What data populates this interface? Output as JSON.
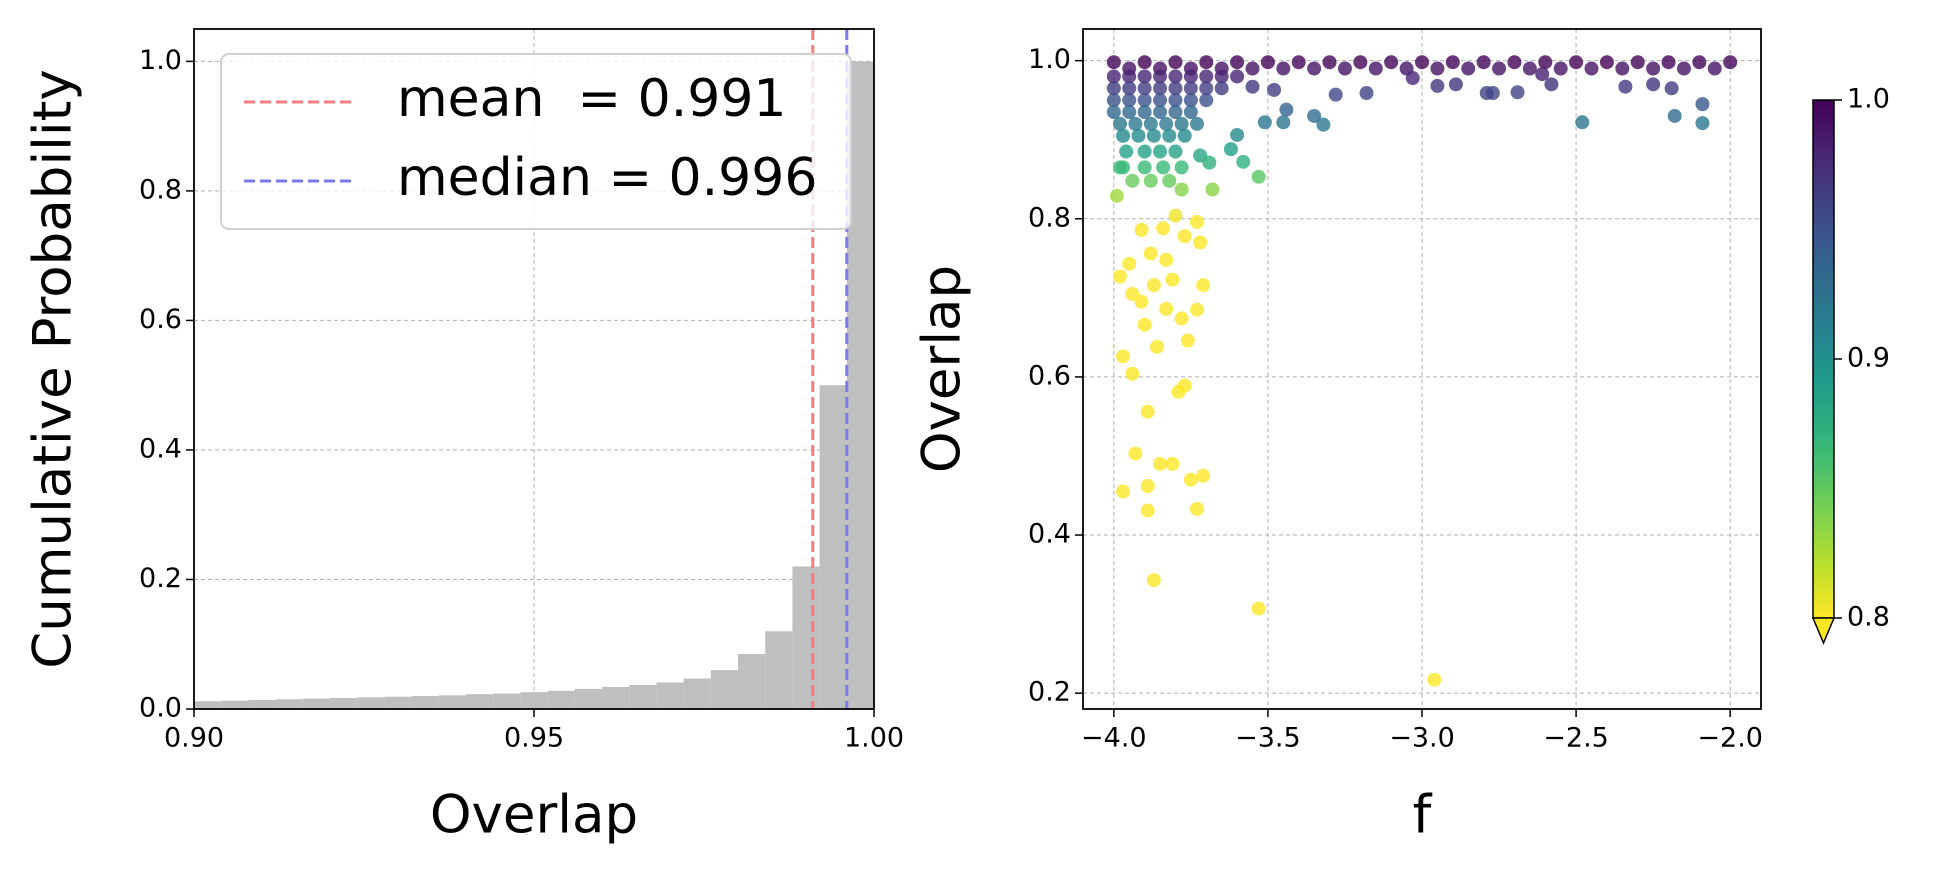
{
  "chart_data": [
    {
      "type": "histogram",
      "xlabel": "Overlap",
      "ylabel": "Cumulative Probability",
      "color": "#bfbfbf",
      "bins": [
        0.9,
        0.904,
        0.908,
        0.912,
        0.916,
        0.92,
        0.924,
        0.928,
        0.932,
        0.936,
        0.94,
        0.944,
        0.948,
        0.952,
        0.956,
        0.96,
        0.964,
        0.968,
        0.972,
        0.976,
        0.98,
        0.984,
        0.988,
        0.992,
        0.996,
        1.0
      ],
      "values": [
        0.012,
        0.013,
        0.014,
        0.015,
        0.016,
        0.017,
        0.018,
        0.019,
        0.02,
        0.021,
        0.023,
        0.024,
        0.026,
        0.028,
        0.031,
        0.034,
        0.037,
        0.041,
        0.047,
        0.06,
        0.085,
        0.12,
        0.22,
        0.5,
        1.0
      ],
      "vlines": [
        {
          "name": "mean  = 0.991",
          "value": 0.991,
          "color": "#f47c7c"
        },
        {
          "name": "median = 0.996",
          "value": 0.996,
          "color": "#7b7bee"
        }
      ],
      "legend": "upper left",
      "grid": true,
      "xlim": [
        0.9,
        1.0
      ],
      "xticks": [
        {
          "value": 0.9,
          "label": "0.90"
        },
        0.95,
        {
          "value": 1.0,
          "label": "1.00"
        }
      ],
      "ylim": [
        0,
        1.05
      ],
      "yticks": [
        {
          "value": 0,
          "label": "0.0"
        },
        0.2,
        0.4,
        0.6,
        0.8,
        {
          "value": 1.0,
          "label": "1.0"
        }
      ]
    },
    {
      "type": "scatter",
      "xlabel": "f",
      "ylabel": "Overlap",
      "grid": true,
      "colormap": "viridis_r",
      "clim": [
        0.8,
        1.0
      ],
      "extend": "min",
      "cticks": [
        0.8,
        0.9,
        {
          "value": 1.0,
          "label": "1.0"
        }
      ],
      "xlim": [
        -4.1,
        -1.9
      ],
      "xticks": [
        {
          "value": -4.0,
          "label": "−4.0"
        },
        {
          "value": -3.5,
          "label": "−3.5"
        },
        {
          "value": -3.0,
          "label": "−3.0"
        },
        {
          "value": -2.5,
          "label": "−2.5"
        },
        {
          "value": -2.0,
          "label": "−2.0"
        }
      ],
      "ylim": [
        0.18,
        1.04
      ],
      "yticks": [
        0.2,
        0.4,
        0.6,
        0.8,
        {
          "value": 1.0,
          "label": "1.0"
        }
      ],
      "x": [
        -4.0,
        -3.9,
        -3.8,
        -3.7,
        -3.6,
        -3.5,
        -3.4,
        -3.3,
        -3.2,
        -3.1,
        -3.0,
        -2.9,
        -2.8,
        -2.7,
        -2.6,
        -2.5,
        -2.4,
        -2.3,
        -2.2,
        -2.1,
        -2.0,
        -3.95,
        -3.85,
        -3.75,
        -3.65,
        -3.55,
        -3.45,
        -3.35,
        -3.25,
        -3.15,
        -3.05,
        -2.95,
        -2.85,
        -2.75,
        -2.65,
        -2.55,
        -2.45,
        -2.35,
        -2.25,
        -2.15,
        -2.05,
        -4.0,
        -3.95,
        -3.9,
        -3.85,
        -3.8,
        -3.75,
        -3.7,
        -3.65,
        -3.6,
        -4.0,
        -3.95,
        -3.9,
        -3.85,
        -3.8,
        -3.75,
        -3.7,
        -3.65,
        -4.0,
        -3.95,
        -3.9,
        -3.85,
        -3.8,
        -3.75,
        -3.7,
        -4.0,
        -3.95,
        -3.9,
        -3.85,
        -3.8,
        -3.75,
        -3.98,
        -3.93,
        -3.88,
        -3.83,
        -3.78,
        -3.73,
        -3.97,
        -3.92,
        -3.87,
        -3.82,
        -3.77,
        -3.96,
        -3.9,
        -3.85,
        -3.8,
        -3.97,
        -3.9,
        -3.84,
        -3.78,
        -3.94,
        -3.88,
        -3.82,
        -2.96,
        -3.53,
        -3.87,
        -3.97,
        -3.89,
        -3.85,
        -3.93,
        -3.81,
        -3.75,
        -3.71,
        -3.89,
        -3.73,
        -3.89,
        -3.79,
        -3.77,
        -3.94,
        -3.97,
        -3.86,
        -3.76,
        -3.9,
        -3.83,
        -3.73,
        -3.78,
        -3.91,
        -3.94,
        -3.98,
        -3.87,
        -3.81,
        -3.71,
        -3.95,
        -3.88,
        -3.83,
        -3.72,
        -3.91,
        -3.84,
        -3.77,
        -3.73,
        -3.8,
        -3.99,
        -3.78,
        -3.53,
        -3.68,
        -3.98,
        -3.72,
        -3.62,
        -3.69,
        -3.58,
        -3.32,
        -3.35,
        -3.45,
        -3.51,
        -2.48,
        -2.18,
        -2.09,
        -2.09,
        -3.44,
        -3.6,
        -3.28,
        -3.18,
        -3.48,
        -3.55,
        -3.03,
        -2.95,
        -2.89,
        -2.79,
        -2.77,
        -2.69,
        -2.58,
        -2.34,
        -2.25,
        -2.19,
        -2.61
      ],
      "values": [
        0.998,
        0.998,
        0.998,
        0.998,
        0.998,
        0.998,
        0.998,
        0.998,
        0.998,
        0.998,
        0.998,
        0.998,
        0.998,
        0.998,
        0.998,
        0.998,
        0.998,
        0.998,
        0.998,
        0.998,
        0.998,
        0.99,
        0.99,
        0.99,
        0.99,
        0.99,
        0.99,
        0.99,
        0.99,
        0.99,
        0.99,
        0.99,
        0.99,
        0.99,
        0.99,
        0.99,
        0.99,
        0.99,
        0.99,
        0.99,
        0.99,
        0.98,
        0.98,
        0.98,
        0.98,
        0.98,
        0.98,
        0.98,
        0.98,
        0.98,
        0.965,
        0.965,
        0.965,
        0.965,
        0.965,
        0.965,
        0.965,
        0.965,
        0.95,
        0.95,
        0.95,
        0.95,
        0.95,
        0.95,
        0.95,
        0.935,
        0.935,
        0.935,
        0.935,
        0.935,
        0.935,
        0.92,
        0.92,
        0.92,
        0.92,
        0.92,
        0.92,
        0.905,
        0.905,
        0.905,
        0.905,
        0.905,
        0.885,
        0.885,
        0.885,
        0.885,
        0.865,
        0.865,
        0.865,
        0.865,
        0.848,
        0.848,
        0.848,
        0.217,
        0.307,
        0.343,
        0.455,
        0.462,
        0.49,
        0.503,
        0.49,
        0.47,
        0.475,
        0.431,
        0.433,
        0.556,
        0.581,
        0.589,
        0.604,
        0.626,
        0.638,
        0.646,
        0.666,
        0.686,
        0.685,
        0.674,
        0.695,
        0.705,
        0.727,
        0.716,
        0.723,
        0.716,
        0.743,
        0.756,
        0.748,
        0.77,
        0.786,
        0.788,
        0.778,
        0.796,
        0.804,
        0.829,
        0.837,
        0.853,
        0.837,
        0.865,
        0.88,
        0.888,
        0.871,
        0.872,
        0.919,
        0.93,
        0.922,
        0.922,
        0.922,
        0.93,
        0.921,
        0.945,
        0.938,
        0.906,
        0.957,
        0.959,
        0.963,
        0.967,
        0.978,
        0.968,
        0.97,
        0.959,
        0.959,
        0.96,
        0.97,
        0.967,
        0.97,
        0.965,
        0.983
      ]
    }
  ]
}
